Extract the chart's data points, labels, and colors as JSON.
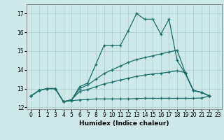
{
  "xlabel": "Humidex (Indice chaleur)",
  "background_color": "#cce8e8",
  "grid_color": "#aacccc",
  "line_color": "#1a6e6a",
  "xlim": [
    -0.5,
    23.5
  ],
  "ylim": [
    11.9,
    17.5
  ],
  "yticks": [
    12,
    13,
    14,
    15,
    16,
    17
  ],
  "xticks": [
    0,
    1,
    2,
    3,
    4,
    5,
    6,
    7,
    8,
    9,
    10,
    11,
    12,
    13,
    14,
    15,
    16,
    17,
    18,
    19,
    20,
    21,
    22,
    23
  ],
  "series": [
    {
      "x": [
        0,
        1,
        2,
        3,
        4,
        5,
        6,
        7,
        8,
        9,
        10,
        11,
        12,
        13,
        14,
        15,
        16,
        17,
        18,
        19,
        20,
        21,
        22
      ],
      "y": [
        12.6,
        12.9,
        13.0,
        13.0,
        12.3,
        12.4,
        13.1,
        13.3,
        14.3,
        15.3,
        15.3,
        15.3,
        16.1,
        17.0,
        16.7,
        16.7,
        15.9,
        16.7,
        14.5,
        13.8,
        12.9,
        12.8,
        12.6
      ]
    },
    {
      "x": [
        0,
        1,
        2,
        3,
        4,
        5,
        6,
        7,
        8,
        9,
        10,
        11,
        12,
        13,
        14,
        15,
        16,
        17,
        18,
        19,
        20,
        21,
        22
      ],
      "y": [
        12.6,
        12.9,
        13.0,
        13.0,
        12.3,
        12.4,
        13.0,
        13.2,
        13.5,
        13.8,
        14.0,
        14.2,
        14.4,
        14.55,
        14.65,
        14.75,
        14.85,
        14.95,
        15.05,
        13.85,
        12.9,
        12.8,
        12.6
      ]
    },
    {
      "x": [
        0,
        1,
        2,
        3,
        4,
        5,
        6,
        7,
        8,
        9,
        10,
        11,
        12,
        13,
        14,
        15,
        16,
        17,
        18,
        19,
        20,
        21,
        22
      ],
      "y": [
        12.6,
        12.9,
        13.0,
        13.0,
        12.3,
        12.4,
        12.85,
        12.95,
        13.1,
        13.25,
        13.35,
        13.45,
        13.55,
        13.65,
        13.72,
        13.78,
        13.82,
        13.88,
        13.95,
        13.85,
        12.9,
        12.8,
        12.6
      ]
    },
    {
      "x": [
        0,
        1,
        2,
        3,
        4,
        5,
        6,
        7,
        8,
        9,
        10,
        11,
        12,
        13,
        14,
        15,
        16,
        17,
        18,
        19,
        20,
        21,
        22
      ],
      "y": [
        12.6,
        12.9,
        13.0,
        13.0,
        12.3,
        12.35,
        12.4,
        12.42,
        12.45,
        12.45,
        12.45,
        12.45,
        12.45,
        12.47,
        12.48,
        12.48,
        12.48,
        12.48,
        12.48,
        12.48,
        12.48,
        12.5,
        12.6
      ]
    }
  ]
}
